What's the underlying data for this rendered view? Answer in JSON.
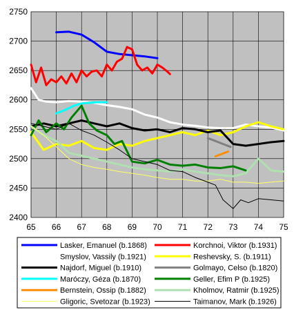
{
  "chart_data": {
    "type": "line",
    "title": "",
    "xlabel": "",
    "ylabel": "",
    "xlim": [
      65,
      75
    ],
    "ylim": [
      2400,
      2750
    ],
    "x_ticks": [
      "65",
      "66",
      "67",
      "68",
      "69",
      "70",
      "71",
      "72",
      "73",
      "74",
      "75"
    ],
    "y_ticks": [
      "2750",
      "2700",
      "2650",
      "2600",
      "2550",
      "2500",
      "2450",
      "2400"
    ],
    "grid": true,
    "plot_background": "#c0c0c0",
    "legend_placement": "bottom",
    "series": [
      {
        "name": "Lasker, Emanuel (b.1868)",
        "color": "#0000ff",
        "width": 3,
        "x": [
          66.0,
          66.5,
          67.0,
          67.5,
          68.0,
          68.5,
          69.0,
          69.5,
          70.0
        ],
        "y": [
          2715,
          2716,
          2711,
          2698,
          2682,
          2678,
          2676,
          2674,
          2671
        ]
      },
      {
        "name": "Korchnoi, Viktor (b.1931)",
        "color": "#ff0000",
        "width": 3,
        "x": [
          65.0,
          65.2,
          65.4,
          65.6,
          65.8,
          66.0,
          66.2,
          66.4,
          66.6,
          66.8,
          67.0,
          67.2,
          67.4,
          67.6,
          67.8,
          68.0,
          68.2,
          68.4,
          68.6,
          68.8,
          69.0,
          69.2,
          69.4,
          69.6,
          69.8,
          70.0,
          70.2,
          70.4,
          70.5
        ],
        "y": [
          2660,
          2630,
          2655,
          2625,
          2635,
          2630,
          2640,
          2628,
          2645,
          2630,
          2650,
          2640,
          2648,
          2650,
          2640,
          2660,
          2650,
          2665,
          2670,
          2690,
          2686,
          2660,
          2650,
          2655,
          2645,
          2660,
          2655,
          2648,
          2644
        ]
      },
      {
        "name": "Smyslov, Vassily (b.1921)",
        "color": "#ffffff",
        "width": 3,
        "x": [
          65.0,
          65.3,
          65.6,
          66.0,
          66.5,
          67.0,
          67.5,
          68.0,
          68.5,
          69.0,
          69.5,
          70.0,
          70.5,
          71.0,
          71.5,
          72.0,
          72.5,
          73.0,
          73.5,
          74.0,
          74.5,
          75.0
        ],
        "y": [
          2620,
          2600,
          2597,
          2596,
          2598,
          2597,
          2595,
          2591,
          2588,
          2584,
          2575,
          2570,
          2562,
          2558,
          2556,
          2553,
          2552,
          2552,
          2558,
          2555,
          2553,
          2548
        ]
      },
      {
        "name": "Reshevsky, S. (b.1911)",
        "color": "#ffff00",
        "width": 3,
        "x": [
          65.0,
          65.5,
          66.0,
          66.5,
          67.0,
          67.5,
          68.0,
          68.5,
          69.0,
          69.5,
          70.0,
          70.5,
          71.0,
          71.5,
          72.0,
          72.5,
          73.0,
          73.5,
          74.0,
          74.5,
          75.0
        ],
        "y": [
          2545,
          2515,
          2525,
          2522,
          2530,
          2518,
          2515,
          2525,
          2522,
          2530,
          2535,
          2540,
          2545,
          2540,
          2548,
          2540,
          2545,
          2555,
          2562,
          2555,
          2550
        ]
      },
      {
        "name": "Najdorf, Miguel (b.1910)",
        "color": "#000000",
        "width": 3,
        "x": [
          65.0,
          65.5,
          66.0,
          66.5,
          67.0,
          67.5,
          68.0,
          68.5,
          69.0,
          69.5,
          70.0,
          70.5,
          71.0,
          71.5,
          72.0,
          72.5,
          73.0,
          73.5,
          74.0,
          74.5,
          75.0
        ],
        "y": [
          2555,
          2560,
          2555,
          2560,
          2565,
          2560,
          2555,
          2560,
          2552,
          2548,
          2550,
          2545,
          2552,
          2550,
          2545,
          2548,
          2525,
          2522,
          2525,
          2528,
          2530
        ]
      },
      {
        "name": "Golmayo, Celso (b.1820)",
        "color": "#808080",
        "width": 3,
        "x": [
          72.0,
          72.3,
          72.6,
          72.9
        ],
        "y": [
          2535,
          2530,
          2525,
          2520
        ]
      },
      {
        "name": "Maróczy, Géza (b.1870)",
        "color": "#00ffff",
        "width": 3,
        "x": [
          66.0,
          66.3,
          66.7,
          67.0,
          67.3,
          67.6,
          68.0
        ],
        "y": [
          2577,
          2582,
          2590,
          2594,
          2595,
          2596,
          2596
        ]
      },
      {
        "name": "Geller, Efim P (b.1925)",
        "color": "#008000",
        "width": 3,
        "x": [
          65.0,
          65.3,
          65.6,
          66.0,
          66.3,
          66.6,
          67.0,
          67.3,
          67.6,
          68.0,
          68.3,
          68.6,
          69.0,
          69.5,
          70.0,
          70.5,
          71.0,
          71.5,
          72.0,
          72.5,
          73.0,
          73.5
        ],
        "y": [
          2540,
          2565,
          2545,
          2560,
          2550,
          2570,
          2590,
          2560,
          2548,
          2540,
          2525,
          2530,
          2495,
          2492,
          2498,
          2490,
          2488,
          2490,
          2485,
          2484,
          2487,
          2480
        ]
      },
      {
        "name": "Bernstein, Ossip (b.1882)",
        "color": "#ff8c00",
        "width": 3,
        "x": [
          72.3,
          72.8
        ],
        "y": [
          2504,
          2512
        ]
      },
      {
        "name": "Kholmov, Ratmir (b.1925)",
        "color": "#b0e0b0",
        "width": 3,
        "x": [
          65.0,
          65.5,
          66.0,
          66.5,
          67.0,
          67.5,
          68.0,
          68.5,
          69.0,
          69.5,
          70.0,
          70.5,
          71.0,
          71.5,
          72.0,
          72.5,
          73.0,
          73.5,
          74.0,
          74.5,
          75.0
        ],
        "y": [
          2555,
          2540,
          2530,
          2510,
          2505,
          2500,
          2495,
          2490,
          2485,
          2482,
          2480,
          2478,
          2482,
          2478,
          2475,
          2472,
          2470,
          2475,
          2500,
          2480,
          2478
        ]
      },
      {
        "name": "Gligoric, Svetozar (b.1923)",
        "color": "#ffff66",
        "width": 1,
        "x": [
          65.0,
          65.5,
          66.0,
          66.5,
          67.0,
          67.5,
          68.0,
          68.5,
          69.0,
          69.5,
          70.0,
          70.5,
          71.0,
          71.5,
          72.0,
          72.5,
          73.0,
          73.5,
          74.0,
          74.5,
          75.0
        ],
        "y": [
          2555,
          2540,
          2520,
          2500,
          2490,
          2485,
          2482,
          2478,
          2475,
          2472,
          2468,
          2465,
          2465,
          2462,
          2462,
          2465,
          2460,
          2460,
          2458,
          2460,
          2462
        ]
      },
      {
        "name": "Taimanov, Mark (b.1926)",
        "color": "#000000",
        "width": 1,
        "x": [
          65.0,
          65.5,
          66.0,
          66.5,
          67.0,
          67.5,
          68.0,
          68.5,
          69.0,
          69.5,
          70.0,
          70.5,
          71.0,
          71.5,
          72.0,
          72.3,
          72.6,
          73.0,
          73.3,
          73.6,
          74.0,
          74.5,
          75.0
        ],
        "y": [
          2560,
          2555,
          2550,
          2560,
          2548,
          2540,
          2528,
          2515,
          2500,
          2495,
          2490,
          2480,
          2478,
          2468,
          2460,
          2455,
          2430,
          2415,
          2430,
          2425,
          2432,
          2430,
          2428
        ]
      }
    ]
  }
}
